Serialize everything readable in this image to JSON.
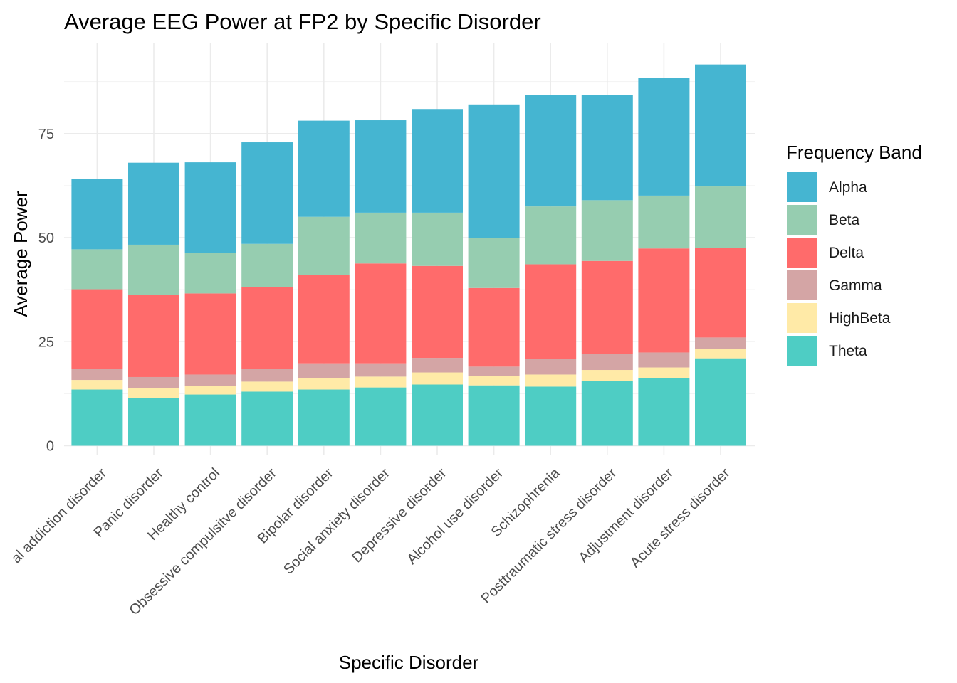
{
  "chart_data": {
    "type": "bar",
    "stacked": true,
    "title": "Average EEG Power at FP2 by Specific Disorder",
    "xlabel": "Specific Disorder",
    "ylabel": "Average Power",
    "ylim": [
      0,
      96
    ],
    "yticks": [
      0,
      25,
      50,
      75
    ],
    "grid": true,
    "legend": {
      "title": "Frequency Band",
      "position": "right"
    },
    "categories": [
      "Behavioral addiction disorder",
      "Panic disorder",
      "Healthy control",
      "Obsessive compulsitve disorder",
      "Bipolar disorder",
      "Social anxiety disorder",
      "Depressive disorder",
      "Alcohol use disorder",
      "Schizophrenia",
      "Posttraumatic stress disorder",
      "Adjustment disorder",
      "Acute stress disorder"
    ],
    "category_labels": [
      "al addiction disorder",
      "Panic disorder",
      "Healthy control",
      "Obsessive compulsitve disorder",
      "Bipolar disorder",
      "Social anxiety disorder",
      "Depressive disorder",
      "Alcohol use disorder",
      "Schizophrenia",
      "Posttraumatic stress disorder",
      "Adjustment disorder",
      "Acute stress disorder"
    ],
    "stack_order": [
      "Theta",
      "HighBeta",
      "Gamma",
      "Delta",
      "Beta",
      "Alpha"
    ],
    "series": [
      {
        "name": "Alpha",
        "color": "#45B5D1",
        "values": [
          16.9,
          19.7,
          21.8,
          24.4,
          23.1,
          22.2,
          24.9,
          32.0,
          26.8,
          25.3,
          28.2,
          29.3
        ]
      },
      {
        "name": "Beta",
        "color": "#96CDB0",
        "values": [
          9.6,
          12.1,
          9.7,
          10.4,
          13.9,
          12.2,
          12.8,
          12.1,
          13.9,
          14.6,
          12.7,
          14.8
        ]
      },
      {
        "name": "Delta",
        "color": "#FF6B6B",
        "values": [
          19.2,
          19.7,
          19.5,
          19.6,
          21.3,
          24.0,
          22.1,
          18.9,
          22.8,
          22.4,
          25.0,
          21.5
        ]
      },
      {
        "name": "Gamma",
        "color": "#D4A5A5",
        "values": [
          2.6,
          2.6,
          2.7,
          3.1,
          3.6,
          3.2,
          3.5,
          2.3,
          3.7,
          3.8,
          3.6,
          2.7
        ]
      },
      {
        "name": "HighBeta",
        "color": "#FFEAA7",
        "values": [
          2.3,
          2.5,
          2.1,
          2.4,
          2.7,
          2.6,
          2.9,
          2.2,
          2.9,
          2.7,
          2.6,
          2.3
        ]
      },
      {
        "name": "Theta",
        "color": "#4ECDC4",
        "values": [
          13.5,
          11.4,
          12.3,
          13.0,
          13.5,
          14.0,
          14.7,
          14.5,
          14.2,
          15.5,
          16.2,
          21.0
        ]
      }
    ]
  }
}
